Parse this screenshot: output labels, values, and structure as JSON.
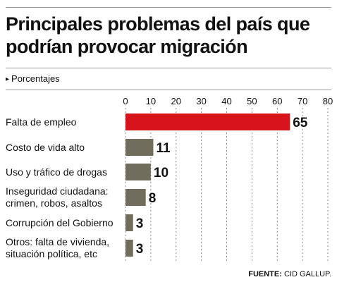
{
  "header": {
    "title_line1": "Principales problemas del país que",
    "title_line2": "podrían provocar migración",
    "subtitle_marker": "▸",
    "subtitle": "Porcentajes"
  },
  "chart_data": {
    "type": "bar",
    "orientation": "horizontal",
    "title": "Principales problemas del país que podrían provocar migración",
    "subtitle": "Porcentajes",
    "categories": [
      [
        "Falta de empleo"
      ],
      [
        "Costo de vida alto"
      ],
      [
        "Uso y tráfico de drogas"
      ],
      [
        "Inseguridad ciudadana:",
        "crimen, robos, asaltos"
      ],
      [
        "Corrupción del Gobierno"
      ],
      [
        "Otros: falta de vivienda,",
        "situación política, etc"
      ]
    ],
    "values": [
      65,
      11,
      10,
      8,
      3,
      3
    ],
    "value_labels": [
      "65",
      "11",
      "10",
      "8",
      "3",
      "3"
    ],
    "xlim": [
      0,
      80
    ],
    "ticks": [
      "0",
      "10",
      "20",
      "30",
      "40",
      "50",
      "60",
      "70",
      "80"
    ],
    "tick_values": [
      0,
      10,
      20,
      30,
      40,
      50,
      60,
      70,
      80
    ],
    "grid": "vertical dashed",
    "colors": {
      "highlight": "#d7131b",
      "bar": "#716d5d",
      "grid": "#8c8c8c",
      "text": "#111111"
    }
  },
  "footer": {
    "source_label": "FUENTE:",
    "source_text": " CID GALLUP."
  }
}
